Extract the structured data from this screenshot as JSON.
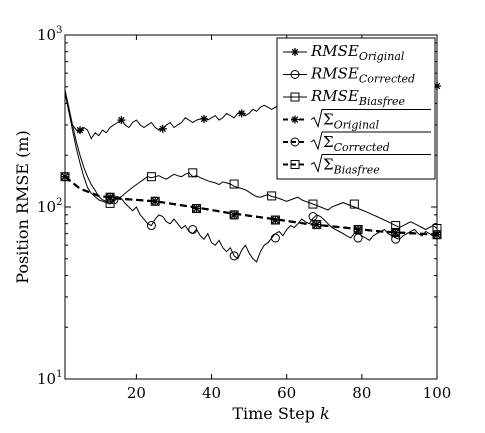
{
  "chart_data": {
    "type": "line",
    "xlabel": "Time Step",
    "xlabel_var": "k",
    "ylabel": "Position RMSE (m)",
    "xlim": [
      1,
      100
    ],
    "ylim": [
      10,
      1000
    ],
    "yscale": "log",
    "x_ticks": [
      20,
      40,
      60,
      80,
      100
    ],
    "x_tick_labels": [
      "20",
      "40",
      "60",
      "80",
      "100"
    ],
    "y_ticks": [
      10,
      100,
      1000
    ],
    "y_tick_labels": [
      {
        "base": "10",
        "exp": "1"
      },
      {
        "base": "10",
        "exp": "2"
      },
      {
        "base": "10",
        "exp": "3"
      }
    ],
    "grid": false,
    "legend_position": "top-right",
    "series": [
      {
        "name": "RMSE",
        "subscript": "Original",
        "style": "solid",
        "marker": "star",
        "x": [
          1,
          2,
          3,
          4,
          5,
          6,
          7,
          8,
          9,
          10,
          11,
          12,
          13,
          14,
          15,
          16,
          17,
          18,
          19,
          20,
          21,
          22,
          23,
          24,
          25,
          26,
          27,
          28,
          29,
          30,
          31,
          32,
          33,
          34,
          35,
          36,
          37,
          38,
          39,
          40,
          41,
          42,
          43,
          44,
          45,
          46,
          47,
          48,
          49,
          50,
          51,
          52,
          53,
          54,
          55,
          56,
          57,
          58,
          59,
          60,
          61,
          62,
          63,
          64,
          65,
          66,
          67,
          68,
          69,
          70,
          71,
          72,
          73,
          74,
          75,
          76,
          77,
          78,
          79,
          80,
          81,
          82,
          83,
          84,
          85,
          86,
          87,
          88,
          89,
          90,
          91,
          92,
          93,
          94,
          95,
          96,
          97,
          98,
          99,
          100
        ],
        "y": [
          460,
          360,
          300,
          280,
          270,
          290,
          280,
          250,
          270,
          260,
          280,
          270,
          290,
          300,
          310,
          320,
          300,
          290,
          310,
          320,
          300,
          290,
          300,
          310,
          290,
          280,
          285,
          300,
          310,
          290,
          300,
          310,
          330,
          320,
          310,
          320,
          325,
          330,
          320,
          330,
          340,
          320,
          330,
          350,
          340,
          330,
          350,
          360,
          340,
          350,
          370,
          360,
          380,
          390,
          380,
          370,
          380,
          400,
          390,
          420,
          430,
          410,
          440,
          430,
          420,
          440,
          450,
          430,
          460,
          450,
          440,
          470,
          460,
          480,
          470,
          460,
          480,
          500,
          490,
          480,
          470,
          490,
          500,
          510,
          490,
          480,
          500,
          510,
          500,
          490,
          500,
          510,
          520,
          500,
          510,
          500,
          520,
          510,
          500,
          505
        ],
        "marker_x": [
          5,
          16,
          27,
          38,
          48,
          100
        ],
        "marker_y": [
          280,
          320,
          285,
          325,
          350,
          505
        ]
      },
      {
        "name": "RMSE",
        "subscript": "Corrected",
        "style": "solid",
        "marker": "circle",
        "x": [
          1,
          2,
          3,
          4,
          5,
          6,
          7,
          8,
          9,
          10,
          11,
          12,
          13,
          14,
          15,
          16,
          17,
          18,
          19,
          20,
          21,
          22,
          23,
          24,
          25,
          26,
          27,
          28,
          29,
          30,
          31,
          32,
          33,
          34,
          35,
          36,
          37,
          38,
          39,
          40,
          41,
          42,
          43,
          44,
          45,
          46,
          47,
          48,
          49,
          50,
          51,
          52,
          53,
          54,
          55,
          56,
          57,
          58,
          59,
          60,
          61,
          62,
          63,
          64,
          65,
          66,
          67,
          68,
          69,
          70,
          71,
          72,
          73,
          74,
          75,
          76,
          77,
          78,
          79,
          80,
          81,
          82,
          83,
          84,
          85,
          86,
          87,
          88,
          89,
          90,
          91,
          92,
          93,
          94,
          95,
          96,
          97,
          98,
          99,
          100
        ],
        "y": [
          480,
          380,
          300,
          240,
          200,
          170,
          150,
          135,
          125,
          115,
          110,
          108,
          105,
          110,
          115,
          112,
          105,
          100,
          95,
          100,
          90,
          85,
          80,
          78,
          85,
          90,
          88,
          82,
          80,
          85,
          80,
          75,
          78,
          72,
          70,
          74,
          68,
          65,
          70,
          62,
          60,
          64,
          58,
          55,
          58,
          52,
          50,
          56,
          60,
          54,
          50,
          48,
          55,
          60,
          62,
          66,
          70,
          72,
          68,
          74,
          78,
          76,
          80,
          85,
          82,
          80,
          86,
          90,
          88,
          84,
          80,
          76,
          74,
          72,
          70,
          68,
          66,
          70,
          72,
          68,
          66,
          64,
          68,
          70,
          72,
          74,
          70,
          68,
          66,
          65,
          68,
          70,
          72,
          74,
          70,
          68,
          72,
          70,
          68,
          69
        ],
        "marker_x": [
          14,
          24,
          35,
          46,
          57,
          67,
          79,
          89,
          100
        ],
        "marker_y": [
          110,
          78,
          74,
          52,
          66,
          88,
          66,
          65,
          69
        ]
      },
      {
        "name": "RMSE",
        "subscript": "Biasfree",
        "style": "solid",
        "marker": "square",
        "x": [
          1,
          2,
          3,
          4,
          5,
          6,
          7,
          8,
          9,
          10,
          11,
          12,
          13,
          14,
          15,
          16,
          17,
          18,
          19,
          20,
          21,
          22,
          23,
          24,
          25,
          26,
          27,
          28,
          29,
          30,
          31,
          32,
          33,
          34,
          35,
          36,
          37,
          38,
          39,
          40,
          41,
          42,
          43,
          44,
          45,
          46,
          47,
          48,
          49,
          50,
          51,
          52,
          53,
          54,
          55,
          56,
          57,
          58,
          59,
          60,
          61,
          62,
          63,
          64,
          65,
          66,
          67,
          68,
          69,
          70,
          71,
          72,
          73,
          74,
          75,
          76,
          77,
          78,
          79,
          80,
          81,
          82,
          83,
          84,
          85,
          86,
          87,
          88,
          89,
          90,
          91,
          92,
          93,
          94,
          95,
          96,
          97,
          98,
          99,
          100
        ],
        "y": [
          470,
          360,
          280,
          220,
          180,
          150,
          130,
          120,
          115,
          110,
          108,
          106,
          104,
          108,
          112,
          115,
          120,
          125,
          130,
          135,
          140,
          145,
          150,
          148,
          150,
          152,
          148,
          145,
          150,
          155,
          152,
          150,
          155,
          158,
          150,
          152,
          148,
          145,
          142,
          140,
          138,
          135,
          140,
          138,
          136,
          132,
          130,
          128,
          126,
          122,
          118,
          115,
          114,
          116,
          118,
          115,
          114,
          112,
          110,
          108,
          110,
          112,
          114,
          110,
          108,
          106,
          104,
          102,
          100,
          98,
          96,
          100,
          102,
          104,
          106,
          104,
          102,
          100,
          98,
          96,
          94,
          92,
          90,
          88,
          86,
          84,
          82,
          80,
          78,
          76,
          78,
          80,
          82,
          80,
          78,
          76,
          74,
          76,
          78,
          75
        ],
        "marker_x": [
          13,
          24,
          35,
          46,
          56,
          67,
          78,
          89,
          100
        ],
        "marker_y": [
          105,
          150,
          158,
          136,
          116,
          104,
          104,
          78,
          75
        ]
      },
      {
        "name": "Sigma",
        "subscript": "Original",
        "style": "dashed",
        "marker": "star",
        "x": [
          1,
          5,
          10,
          15,
          20,
          25,
          30,
          35,
          40,
          45,
          50,
          55,
          60,
          65,
          70,
          75,
          80,
          85,
          90,
          95,
          100
        ],
        "y": [
          150,
          128,
          116,
          112,
          110,
          108,
          104,
          100,
          96,
          92,
          89,
          86,
          83,
          80,
          78,
          76,
          74,
          72,
          71,
          70,
          69
        ],
        "marker_x": [
          1,
          13,
          25,
          36,
          46,
          57,
          68,
          79,
          89,
          100
        ],
        "marker_y": [
          150,
          114,
          108,
          98,
          90,
          84,
          79,
          74,
          71,
          69
        ]
      },
      {
        "name": "Sigma",
        "subscript": "Corrected",
        "style": "dashed",
        "marker": "circle",
        "x": [
          1,
          5,
          10,
          15,
          20,
          25,
          30,
          35,
          40,
          45,
          50,
          55,
          60,
          65,
          70,
          75,
          80,
          85,
          90,
          95,
          100
        ],
        "y": [
          150,
          128,
          116,
          112,
          110,
          108,
          104,
          100,
          96,
          92,
          89,
          86,
          83,
          80,
          78,
          76,
          74,
          72,
          71,
          70,
          69
        ],
        "marker_x": [
          1,
          13,
          25,
          36,
          46,
          57,
          68,
          79,
          89,
          100
        ],
        "marker_y": [
          150,
          114,
          108,
          98,
          90,
          84,
          79,
          74,
          71,
          69
        ]
      },
      {
        "name": "Sigma",
        "subscript": "Biasfree",
        "style": "dashed",
        "marker": "square",
        "x": [
          1,
          5,
          10,
          15,
          20,
          25,
          30,
          35,
          40,
          45,
          50,
          55,
          60,
          65,
          70,
          75,
          80,
          85,
          90,
          95,
          100
        ],
        "y": [
          150,
          128,
          116,
          112,
          110,
          108,
          104,
          100,
          96,
          92,
          89,
          86,
          83,
          80,
          78,
          76,
          74,
          72,
          71,
          70,
          69
        ],
        "marker_x": [
          1,
          13,
          25,
          36,
          46,
          57,
          68,
          79,
          89,
          100
        ],
        "marker_y": [
          150,
          114,
          108,
          98,
          90,
          84,
          79,
          74,
          71,
          69
        ]
      }
    ]
  }
}
